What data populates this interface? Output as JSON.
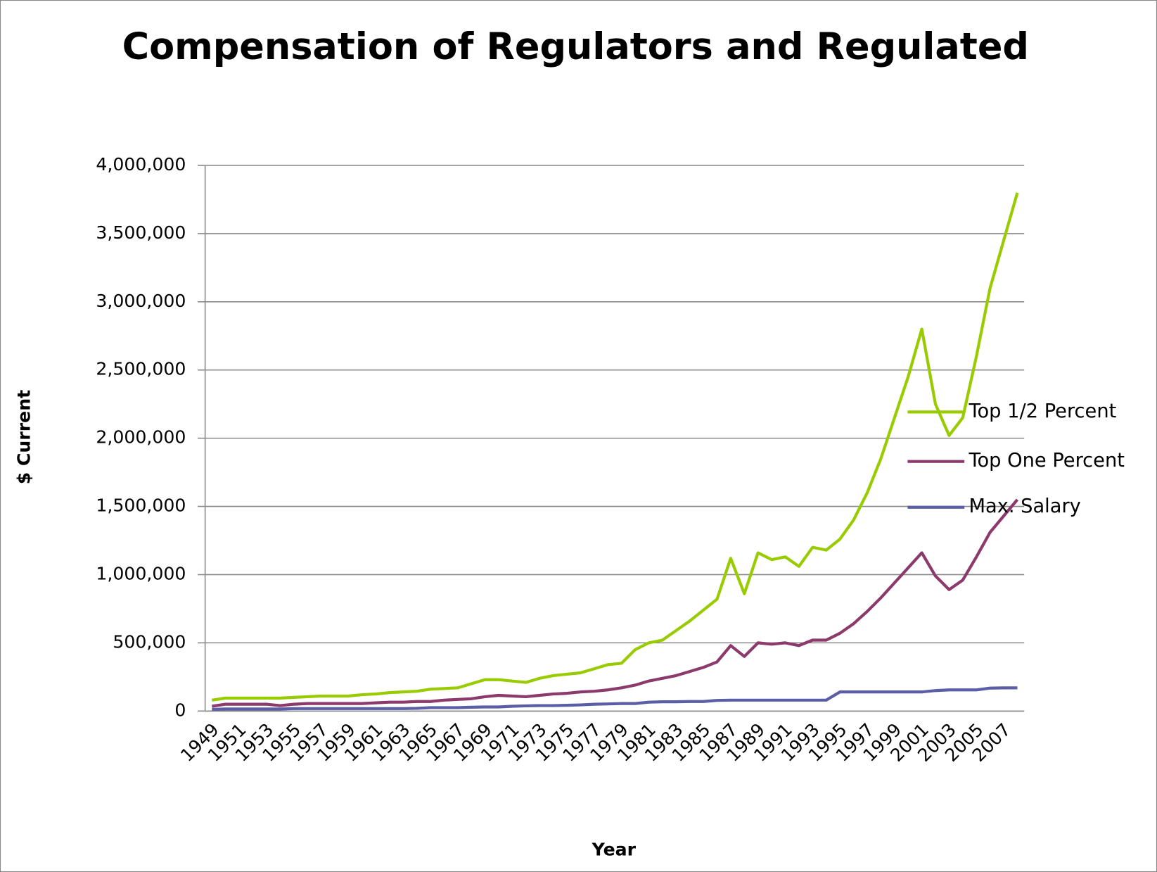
{
  "chart_data": {
    "type": "line",
    "title": "Compensation of Regulators and Regulated",
    "x_label": "Year",
    "y_label": "$ Current",
    "categories": [
      1949,
      null,
      1951,
      null,
      1953,
      null,
      1955,
      null,
      1957,
      null,
      1959,
      null,
      1961,
      null,
      1963,
      null,
      1965,
      null,
      1967,
      null,
      1969,
      null,
      1971,
      null,
      1973,
      null,
      1975,
      null,
      1977,
      null,
      1979,
      null,
      1981,
      null,
      1983,
      null,
      1985,
      null,
      1987,
      null,
      1989,
      null,
      1991,
      null,
      1993,
      null,
      1995,
      null,
      1997,
      null,
      1999,
      null,
      2001,
      null,
      2003,
      null,
      2005,
      null,
      2007,
      null
    ],
    "series": [
      {
        "name": "Top 1/2 Percent",
        "color": "#99cc00",
        "values": [
          80000,
          95000,
          95000,
          95000,
          95000,
          95000,
          100000,
          105000,
          110000,
          110000,
          110000,
          120000,
          125000,
          135000,
          140000,
          145000,
          160000,
          165000,
          170000,
          200000,
          230000,
          230000,
          220000,
          210000,
          240000,
          260000,
          270000,
          280000,
          310000,
          340000,
          350000,
          450000,
          500000,
          520000,
          590000,
          660000,
          740000,
          820000,
          1120000,
          860000,
          1160000,
          1110000,
          1130000,
          1060000,
          1200000,
          1180000,
          1260000,
          1400000,
          1600000,
          1850000,
          2150000,
          2450000,
          2800000,
          2250000,
          2020000,
          2150000,
          2600000,
          3100000,
          3450000,
          3800000
        ]
      },
      {
        "name": "Top One Percent",
        "color": "#8b3a6b",
        "values": [
          35000,
          50000,
          50000,
          50000,
          50000,
          40000,
          50000,
          55000,
          55000,
          55000,
          55000,
          55000,
          60000,
          65000,
          65000,
          70000,
          70000,
          80000,
          85000,
          90000,
          105000,
          115000,
          110000,
          105000,
          115000,
          125000,
          130000,
          140000,
          145000,
          155000,
          170000,
          190000,
          220000,
          240000,
          260000,
          290000,
          320000,
          360000,
          480000,
          400000,
          500000,
          490000,
          500000,
          480000,
          520000,
          520000,
          570000,
          640000,
          730000,
          830000,
          940000,
          1050000,
          1160000,
          990000,
          890000,
          960000,
          1130000,
          1310000,
          1430000,
          1550000
        ]
      },
      {
        "name": "Max. Salary",
        "color": "#5b5ea6",
        "values": [
          12000,
          15000,
          15000,
          15000,
          15000,
          15000,
          18000,
          18000,
          18000,
          18000,
          18000,
          18000,
          18000,
          18000,
          18000,
          20000,
          25000,
          25000,
          25000,
          28000,
          30000,
          30000,
          35000,
          38000,
          40000,
          40000,
          42000,
          45000,
          50000,
          52000,
          55000,
          55000,
          65000,
          68000,
          68000,
          70000,
          70000,
          78000,
          80000,
          80000,
          80000,
          80000,
          80000,
          80000,
          80000,
          80000,
          140000,
          140000,
          140000,
          140000,
          140000,
          140000,
          140000,
          150000,
          155000,
          155000,
          155000,
          168000,
          170000,
          170000
        ]
      }
    ],
    "ylim": [
      0,
      4000000
    ],
    "yticks": [
      0,
      {
        "value": 500000,
        "label": "500,000"
      },
      {
        "value": 1000000,
        "label": "1,000,000"
      },
      {
        "value": 1500000,
        "label": "1,500,000"
      },
      {
        "value": 2000000,
        "label": "2,000,000"
      },
      {
        "value": 2500000,
        "label": "2,500,000"
      },
      {
        "value": 3000000,
        "label": "3,000,000"
      },
      {
        "value": 3500000,
        "label": "3,500,000"
      },
      {
        "value": 4000000,
        "label": "4,000,000"
      }
    ],
    "grid": true,
    "legend": "right"
  }
}
